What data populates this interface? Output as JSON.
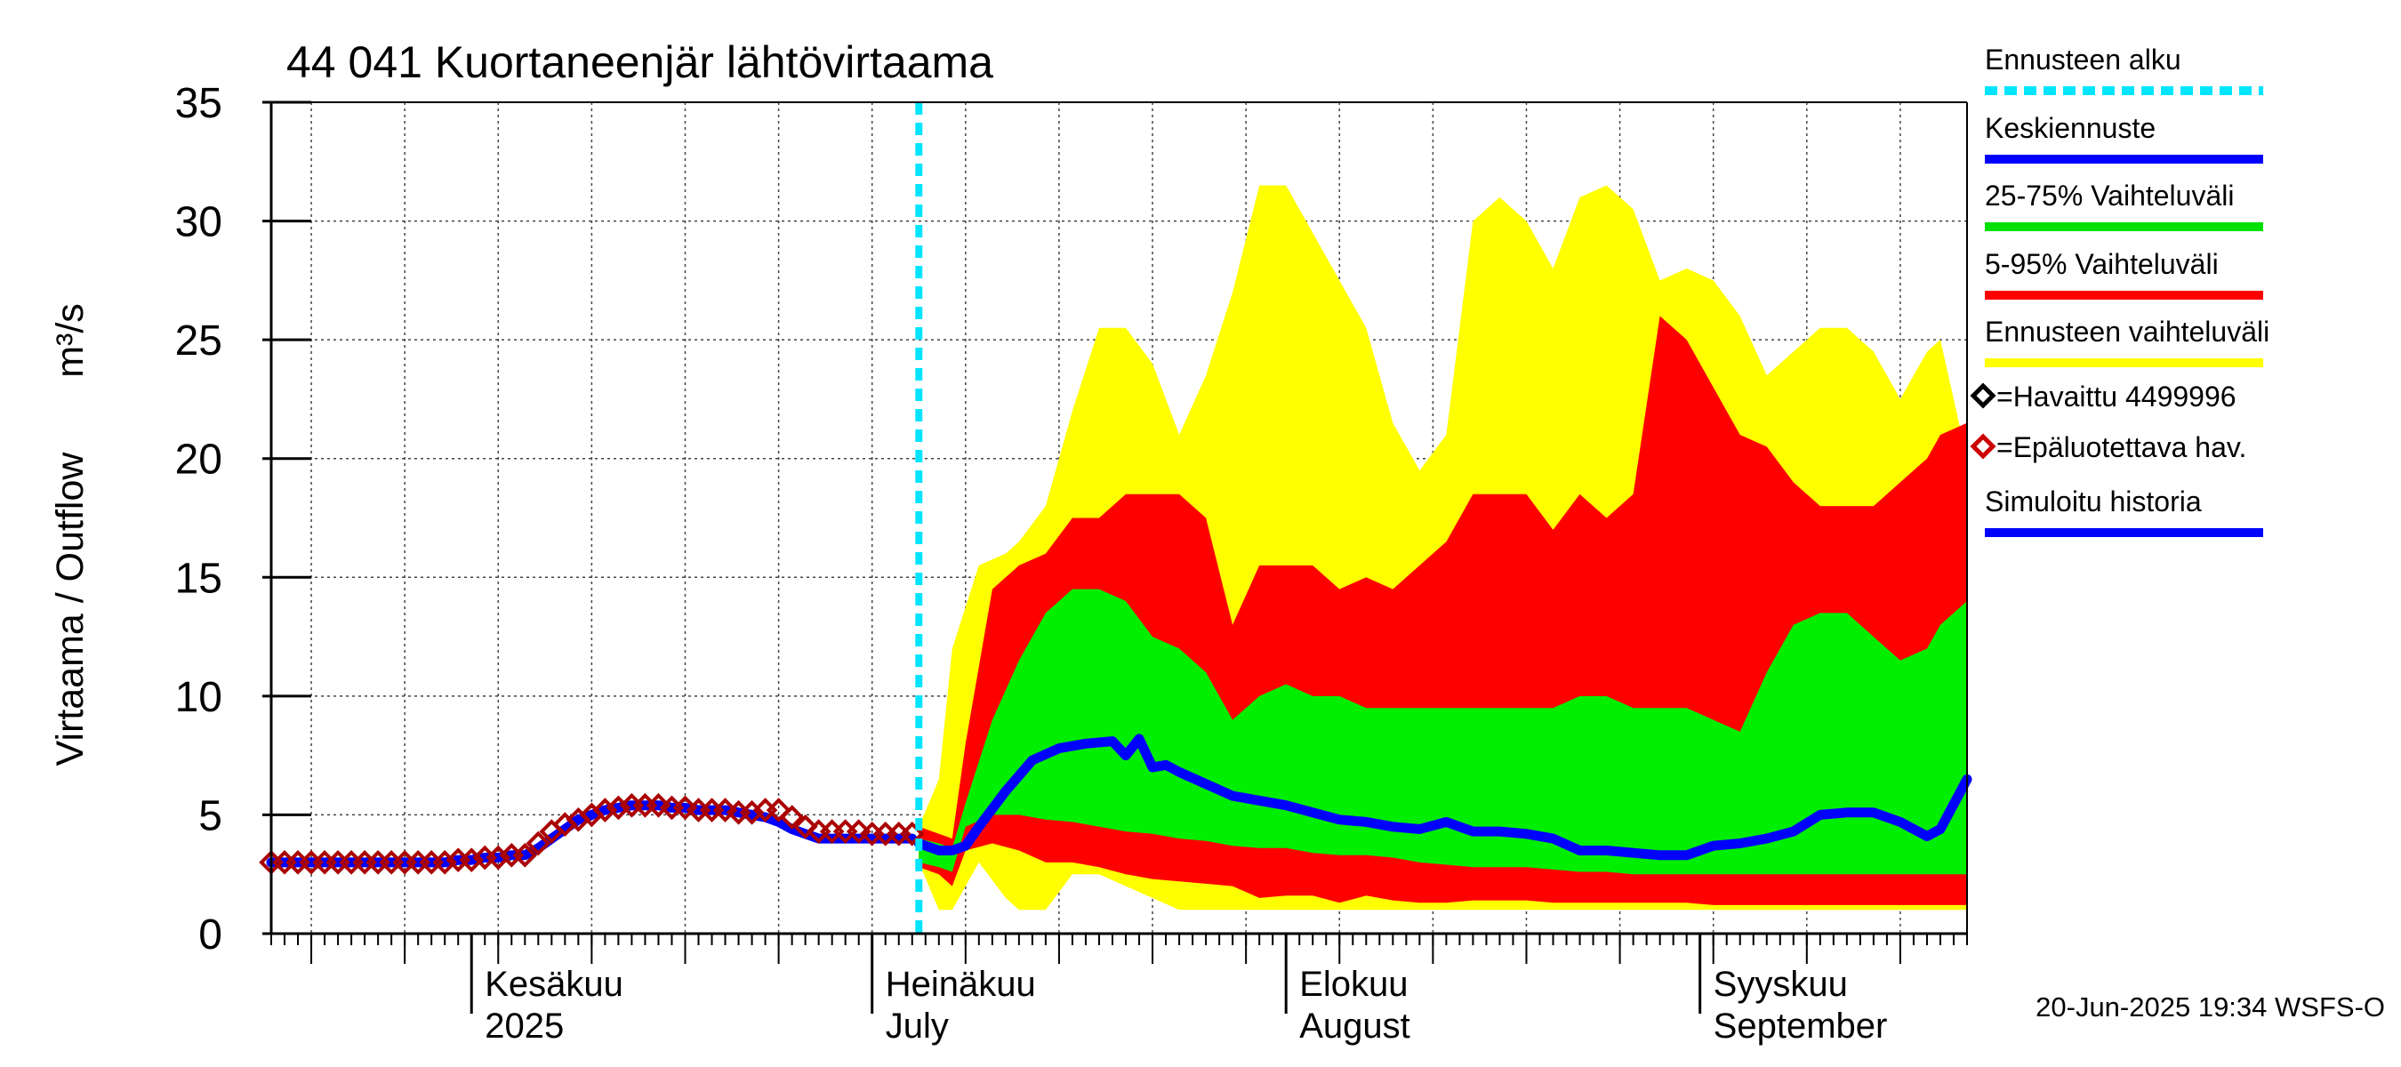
{
  "chart_data": {
    "type": "area",
    "title": "44 041 Kuortaneenjär lähtövirtaama",
    "ylabel": "Virtaama / Outflow",
    "yunit": "m³/s",
    "ylim": [
      0,
      35
    ],
    "yticks": [
      0,
      5,
      10,
      15,
      20,
      25,
      30,
      35
    ],
    "x_start_day": 0,
    "x_end_day": 127,
    "forecast_start_day": 48.5,
    "grid": true,
    "month_labels": [
      {
        "day": 15,
        "line1": "Kesäkuu",
        "line2": "2025"
      },
      {
        "day": 45,
        "line1": "Heinäkuu",
        "line2": "July"
      },
      {
        "day": 76,
        "line1": "Elokuu",
        "line2": "August"
      },
      {
        "day": 107,
        "line1": "Syyskuu",
        "line2": "September"
      }
    ],
    "legend": [
      {
        "label": "Ennusteen alku",
        "color": "#00e5ff",
        "style": "dashed"
      },
      {
        "label": "Keskiennuste",
        "color": "#0000ff",
        "style": "line"
      },
      {
        "label": "25-75% Vaihteluväli",
        "color": "#00e000",
        "style": "line"
      },
      {
        "label": "5-95% Vaihteluväli",
        "color": "#ff0000",
        "style": "line"
      },
      {
        "label": "Ennusteen vaihteluväli",
        "color": "#ffff00",
        "style": "line"
      },
      {
        "label": "=Havaittu 4499996",
        "color": "#000000",
        "style": "diamond"
      },
      {
        "label": "=Epäluotettava hav.",
        "color": "#cc0000",
        "style": "diamond"
      },
      {
        "label": "Simuloitu historia",
        "color": "#0000ff",
        "style": "line"
      }
    ],
    "footer": "20-Jun-2025 19:34 WSFS-O",
    "colors": {
      "yellow": "#ffff00",
      "red": "#ff0000",
      "green": "#00ee00",
      "blue": "#0000ff",
      "cyan": "#00e5ff",
      "marker": "#aa0000"
    },
    "series": [
      {
        "name": "Ennusteen vaihteluväli",
        "days": [
          48.5,
          50,
          51,
          53,
          55,
          56,
          58,
          60,
          62,
          64,
          66,
          68,
          70,
          72,
          74,
          76,
          78,
          80,
          82,
          84,
          86,
          88,
          90,
          92,
          94,
          96,
          98,
          100,
          102,
          104,
          106,
          108,
          110,
          112,
          114,
          116,
          118,
          120,
          122,
          124,
          125,
          127
        ],
        "upper": [
          4.5,
          6.5,
          12,
          15.5,
          16,
          16.5,
          18,
          22,
          25.5,
          25.5,
          24,
          21,
          23.5,
          27,
          31.5,
          31.5,
          29.5,
          27.5,
          25.5,
          21.5,
          19.5,
          21,
          30,
          31,
          30,
          28,
          31,
          31.5,
          30.5,
          27.5,
          28,
          27.5,
          26,
          23.5,
          24.5,
          25.5,
          25.5,
          24.5,
          22.5,
          24.5,
          25,
          20
        ],
        "lower": [
          3.0,
          1.0,
          1.0,
          3.0,
          1.5,
          1.0,
          1.0,
          2.5,
          2.5,
          2.0,
          1.5,
          1.0,
          1.0,
          1.0,
          1.0,
          1.0,
          1.0,
          1.0,
          1.0,
          1.0,
          1.0,
          1.0,
          1.0,
          1.0,
          1.0,
          1.0,
          1.0,
          1.0,
          1.0,
          1.0,
          1.0,
          1.0,
          1.0,
          1.0,
          1.0,
          1.0,
          1.0,
          1.0,
          1.0,
          1.0,
          1.0,
          1.0
        ]
      },
      {
        "name": "5-95% Vaihteluväli",
        "days": [
          48.5,
          50,
          51,
          52,
          54,
          56,
          58,
          60,
          62,
          64,
          66,
          68,
          70,
          72,
          74,
          76,
          78,
          80,
          82,
          84,
          86,
          88,
          90,
          92,
          94,
          96,
          98,
          100,
          102,
          104,
          106,
          108,
          110,
          112,
          114,
          116,
          118,
          120,
          122,
          124,
          125,
          127
        ],
        "upper": [
          4.5,
          4.2,
          4.0,
          8,
          14.5,
          15.5,
          16,
          17.5,
          17.5,
          18.5,
          18.5,
          18.5,
          17.5,
          13,
          15.5,
          15.5,
          15.5,
          14.5,
          15,
          14.5,
          15.5,
          16.5,
          18.5,
          18.5,
          18.5,
          17,
          18.5,
          17.5,
          18.5,
          26,
          25,
          23,
          21,
          20.5,
          19,
          18,
          18,
          18,
          19,
          20,
          21,
          21.5
        ],
        "lower": [
          2.8,
          2.5,
          2.0,
          3.5,
          3.8,
          3.5,
          3.0,
          3.0,
          2.8,
          2.5,
          2.3,
          2.2,
          2.1,
          2.0,
          1.5,
          1.6,
          1.6,
          1.3,
          1.6,
          1.4,
          1.3,
          1.3,
          1.4,
          1.4,
          1.4,
          1.3,
          1.3,
          1.3,
          1.3,
          1.3,
          1.3,
          1.2,
          1.2,
          1.2,
          1.2,
          1.2,
          1.2,
          1.2,
          1.2,
          1.2,
          1.2,
          1.2
        ]
      },
      {
        "name": "25-75% Vaihteluväli",
        "days": [
          48.5,
          50,
          51,
          52,
          54,
          56,
          58,
          60,
          62,
          64,
          66,
          68,
          70,
          72,
          74,
          76,
          78,
          80,
          82,
          84,
          86,
          88,
          90,
          92,
          94,
          96,
          98,
          100,
          102,
          104,
          106,
          108,
          110,
          112,
          114,
          116,
          118,
          120,
          122,
          124,
          125,
          127
        ],
        "upper": [
          4.0,
          3.8,
          3.6,
          5.5,
          9,
          11.5,
          13.5,
          14.5,
          14.5,
          14.0,
          12.5,
          12,
          11,
          9,
          10,
          10.5,
          10,
          10,
          9.5,
          9.5,
          9.5,
          9.5,
          9.5,
          9.5,
          9.5,
          9.5,
          10,
          10,
          9.5,
          9.5,
          9.5,
          9.0,
          8.5,
          11,
          13,
          13.5,
          13.5,
          12.5,
          11.5,
          12,
          13,
          14
        ],
        "lower": [
          3.0,
          2.8,
          2.6,
          4.5,
          5.0,
          5.0,
          4.8,
          4.7,
          4.5,
          4.3,
          4.2,
          4.0,
          3.9,
          3.7,
          3.6,
          3.6,
          3.4,
          3.3,
          3.3,
          3.2,
          3.0,
          2.9,
          2.8,
          2.8,
          2.8,
          2.7,
          2.6,
          2.6,
          2.5,
          2.5,
          2.5,
          2.5,
          2.5,
          2.5,
          2.5,
          2.5,
          2.5,
          2.5,
          2.5,
          2.5,
          2.5,
          2.5
        ]
      },
      {
        "name": "Keskiennuste",
        "days": [
          48.5,
          50,
          51,
          52,
          53,
          55,
          57,
          59,
          61,
          63,
          64,
          65,
          66,
          67,
          68,
          70,
          72,
          74,
          76,
          78,
          80,
          82,
          84,
          86,
          88,
          90,
          92,
          94,
          96,
          98,
          100,
          102,
          104,
          106,
          108,
          110,
          112,
          114,
          116,
          118,
          120,
          122,
          124,
          125,
          127
        ],
        "values": [
          3.8,
          3.5,
          3.5,
          3.7,
          4.5,
          6.0,
          7.3,
          7.8,
          8.0,
          8.1,
          7.5,
          8.2,
          7.0,
          7.1,
          6.8,
          6.3,
          5.8,
          5.6,
          5.4,
          5.1,
          4.8,
          4.7,
          4.5,
          4.4,
          4.7,
          4.3,
          4.3,
          4.2,
          4.0,
          3.5,
          3.5,
          3.4,
          3.3,
          3.3,
          3.7,
          3.8,
          4.0,
          4.3,
          5.0,
          5.1,
          5.1,
          4.7,
          4.1,
          4.4,
          6.5
        ]
      },
      {
        "name": "Simuloitu historia",
        "days": [
          0,
          1,
          2,
          3,
          4,
          5,
          6,
          7,
          8,
          9,
          10,
          11,
          12,
          13,
          14,
          15,
          16,
          17,
          18,
          19,
          20,
          21,
          22,
          23,
          24,
          25,
          26,
          27,
          28,
          29,
          30,
          31,
          32,
          33,
          34,
          35,
          36,
          37,
          38,
          39,
          40,
          41,
          42,
          43,
          44,
          45,
          46,
          47,
          48
        ],
        "values": [
          3.0,
          3.0,
          3.0,
          3.0,
          3.0,
          3.0,
          3.0,
          3.0,
          3.0,
          3.0,
          3.0,
          3.0,
          3.0,
          3.0,
          3.1,
          3.1,
          3.2,
          3.2,
          3.3,
          3.3,
          3.6,
          4.0,
          4.4,
          4.8,
          5.0,
          5.2,
          5.3,
          5.4,
          5.4,
          5.4,
          5.3,
          5.3,
          5.2,
          5.2,
          5.2,
          5.1,
          5.0,
          4.9,
          4.7,
          4.4,
          4.2,
          4.0,
          4.0,
          4.0,
          4.0,
          4.0,
          4.0,
          4.0,
          4.0
        ]
      }
    ],
    "observations_unreliable": {
      "days": [
        0,
        1,
        2,
        3,
        4,
        5,
        6,
        7,
        8,
        9,
        10,
        11,
        12,
        13,
        14,
        15,
        16,
        17,
        18,
        19,
        20,
        21,
        22,
        23,
        24,
        25,
        26,
        27,
        28,
        29,
        30,
        31,
        32,
        33,
        34,
        35,
        36,
        37,
        38,
        39,
        40,
        41,
        42,
        43,
        44,
        45,
        46,
        47,
        48
      ],
      "values": [
        3.0,
        3.0,
        3.0,
        3.0,
        3.0,
        3.0,
        3.0,
        3.0,
        3.0,
        3.0,
        3.0,
        3.0,
        3.0,
        3.0,
        3.1,
        3.1,
        3.2,
        3.2,
        3.3,
        3.3,
        3.8,
        4.3,
        4.6,
        4.8,
        5.0,
        5.2,
        5.3,
        5.4,
        5.4,
        5.4,
        5.3,
        5.3,
        5.2,
        5.2,
        5.2,
        5.1,
        5.1,
        5.2,
        5.2,
        4.9,
        4.5,
        4.3,
        4.3,
        4.3,
        4.3,
        4.2,
        4.2,
        4.2,
        4.2
      ]
    }
  }
}
